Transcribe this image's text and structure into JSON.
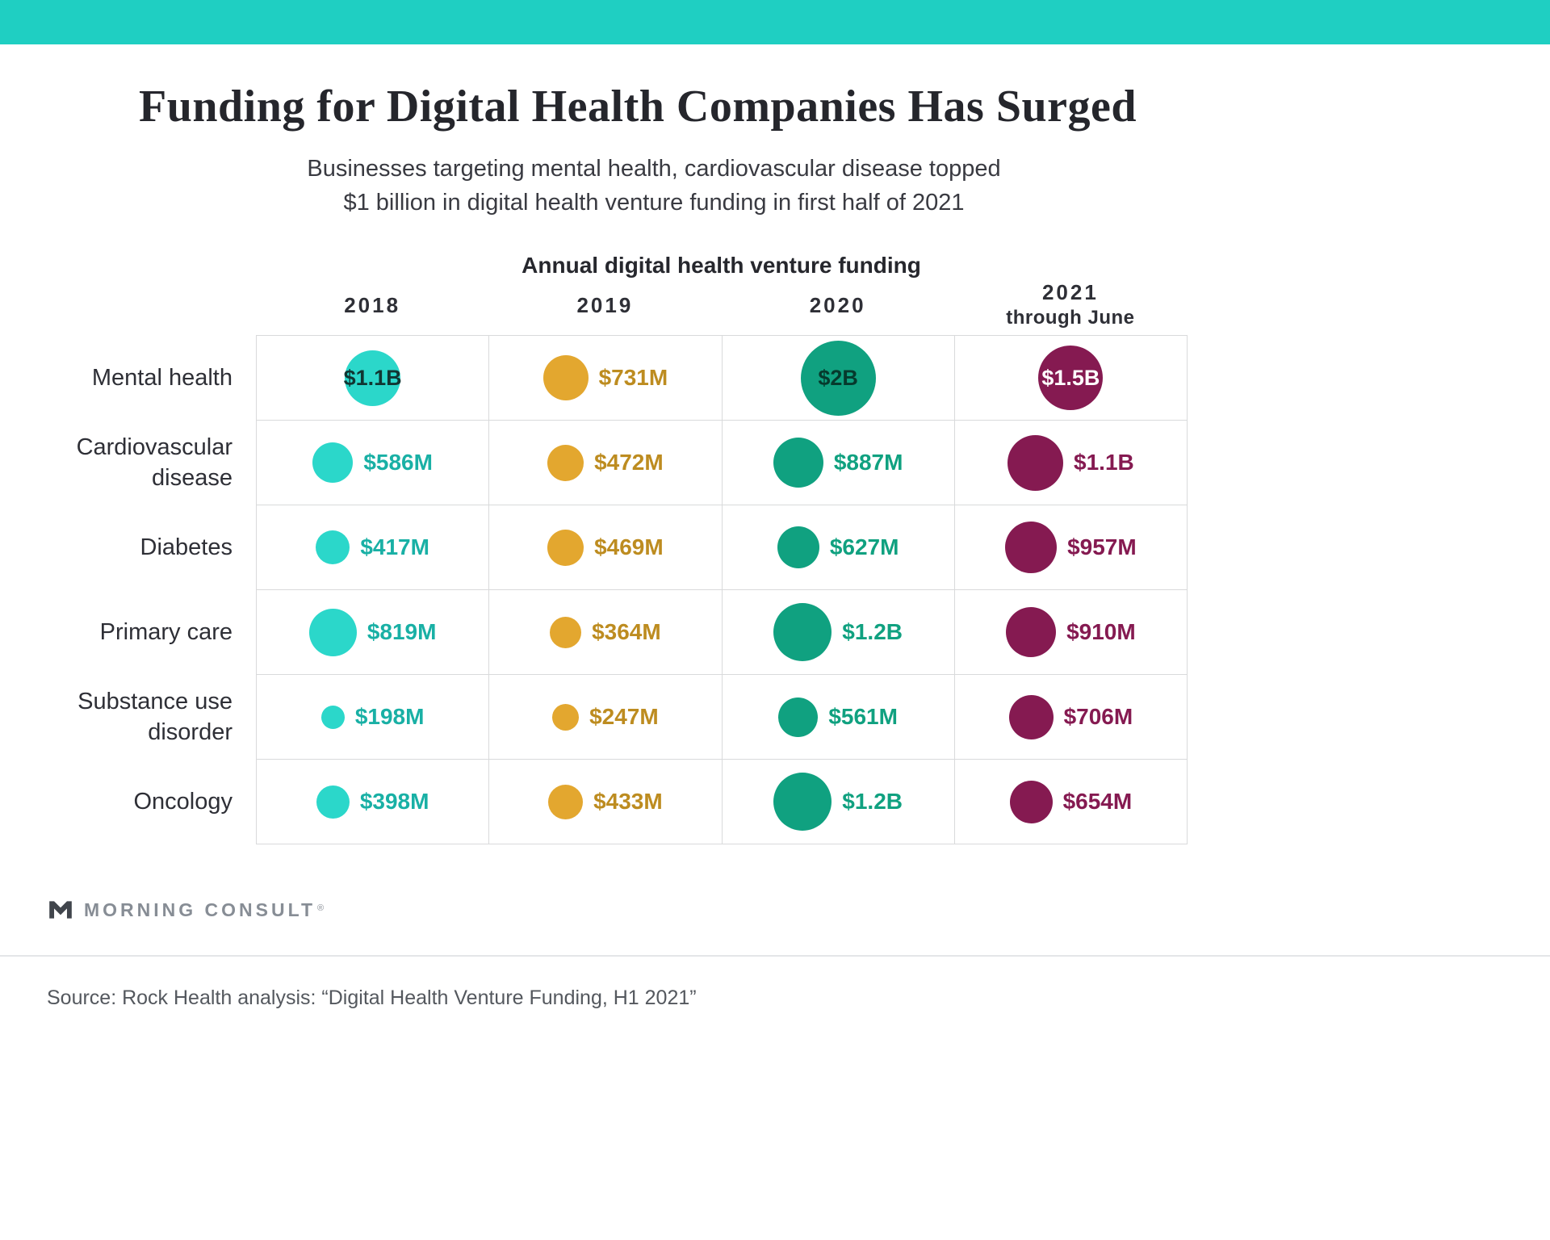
{
  "page": {
    "title": "Funding for Digital Health Companies Has Surged",
    "subtitle_line1": "Businesses targeting mental health, cardiovascular disease topped",
    "subtitle_line2": "$1 billion in digital health venture funding in first half of 2021",
    "logo_text": "MORNING CONSULT",
    "logo_reg": "®",
    "source": "Source: Rock Health analysis: “Digital Health Venture Funding, H1 2021”",
    "topbar_color": "#1FCFC2"
  },
  "chart_data": {
    "type": "bubble",
    "title": "Annual digital health venture funding",
    "unit": "USD millions",
    "legend_position": "column headers",
    "columns": [
      {
        "label": "2018",
        "sublabel": "",
        "bubble_color": "#2BD7CA",
        "text_color": "#19B0A5"
      },
      {
        "label": "2019",
        "sublabel": "",
        "bubble_color": "#E3A72F",
        "text_color": "#BD8C20"
      },
      {
        "label": "2020",
        "sublabel": "",
        "bubble_color": "#10A180",
        "text_color": "#10A180"
      },
      {
        "label": "2021",
        "sublabel": "through June",
        "bubble_color": "#851A51",
        "text_color": "#851A51"
      }
    ],
    "rows": [
      {
        "label": "Mental health",
        "cells": [
          {
            "display": "$1.1B",
            "value": 1100,
            "inside": true,
            "inside_color": "#113632"
          },
          {
            "display": "$731M",
            "value": 731,
            "inside": false
          },
          {
            "display": "$2B",
            "value": 2000,
            "inside": true,
            "inside_color": "#063A2D"
          },
          {
            "display": "$1.5B",
            "value": 1500,
            "inside": true,
            "inside_color": "#FFFFFF"
          }
        ]
      },
      {
        "label": "Cardiovascular disease",
        "cells": [
          {
            "display": "$586M",
            "value": 586,
            "inside": false
          },
          {
            "display": "$472M",
            "value": 472,
            "inside": false
          },
          {
            "display": "$887M",
            "value": 887,
            "inside": false
          },
          {
            "display": "$1.1B",
            "value": 1100,
            "inside": false
          }
        ]
      },
      {
        "label": "Diabetes",
        "cells": [
          {
            "display": "$417M",
            "value": 417,
            "inside": false
          },
          {
            "display": "$469M",
            "value": 469,
            "inside": false
          },
          {
            "display": "$627M",
            "value": 627,
            "inside": false
          },
          {
            "display": "$957M",
            "value": 957,
            "inside": false
          }
        ]
      },
      {
        "label": "Primary care",
        "cells": [
          {
            "display": "$819M",
            "value": 819,
            "inside": false
          },
          {
            "display": "$364M",
            "value": 364,
            "inside": false
          },
          {
            "display": "$1.2B",
            "value": 1200,
            "inside": false
          },
          {
            "display": "$910M",
            "value": 910,
            "inside": false
          }
        ]
      },
      {
        "label": "Substance use disorder",
        "cells": [
          {
            "display": "$198M",
            "value": 198,
            "inside": false
          },
          {
            "display": "$247M",
            "value": 247,
            "inside": false
          },
          {
            "display": "$561M",
            "value": 561,
            "inside": false
          },
          {
            "display": "$706M",
            "value": 706,
            "inside": false
          }
        ]
      },
      {
        "label": "Oncology",
        "cells": [
          {
            "display": "$398M",
            "value": 398,
            "inside": false
          },
          {
            "display": "$433M",
            "value": 433,
            "inside": false
          },
          {
            "display": "$1.2B",
            "value": 1200,
            "inside": false
          },
          {
            "display": "$654M",
            "value": 654,
            "inside": false
          }
        ]
      }
    ]
  }
}
